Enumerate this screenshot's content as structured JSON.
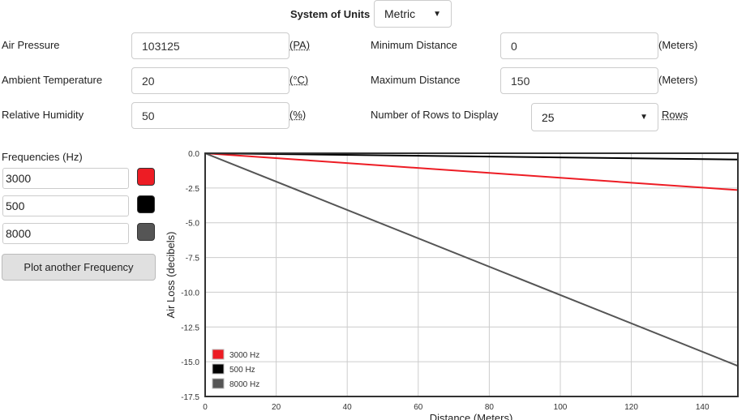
{
  "units": {
    "label": "System of Units",
    "selected": "Metric"
  },
  "fields": {
    "air_pressure": {
      "label": "Air Pressure",
      "value": "103125",
      "unit": "(PA)"
    },
    "temperature": {
      "label": "Ambient Temperature",
      "value": "20",
      "unit": "(°C)"
    },
    "humidity": {
      "label": "Relative Humidity",
      "value": "50",
      "unit": "(%)"
    },
    "min_distance": {
      "label": "Minimum Distance",
      "value": "0",
      "unit": "(Meters)"
    },
    "max_distance": {
      "label": "Maximum Distance",
      "value": "150",
      "unit": "(Meters)"
    },
    "rows": {
      "label": "Number of Rows to Display",
      "selected": "25",
      "unit": "Rows"
    }
  },
  "frequencies": {
    "label": "Frequencies (Hz)",
    "items": [
      {
        "value": "3000",
        "color": "#ed1c24"
      },
      {
        "value": "500",
        "color": "#000000"
      },
      {
        "value": "8000",
        "color": "#555555"
      }
    ],
    "add_button": "Plot another Frequency"
  },
  "chart_data": {
    "type": "line",
    "xlabel": "Distance (Meters)",
    "ylabel": "Air Loss (decibels)",
    "xlim": [
      0,
      150
    ],
    "ylim": [
      -17.5,
      0
    ],
    "xticks": [
      "0",
      "20",
      "40",
      "60",
      "80",
      "100",
      "120",
      "140"
    ],
    "yticks": [
      "0.0",
      "-2.5",
      "-5.0",
      "-7.5",
      "-10.0",
      "-12.5",
      "-15.0",
      "-17.5"
    ],
    "grid": true,
    "legend_position": "bottom-left",
    "series": [
      {
        "name": "3000 Hz",
        "color": "#ed1c24",
        "x": [
          0,
          150
        ],
        "y": [
          0,
          -2.65
        ]
      },
      {
        "name": "500 Hz",
        "color": "#000000",
        "x": [
          0,
          150
        ],
        "y": [
          0,
          -0.45
        ]
      },
      {
        "name": "8000 Hz",
        "color": "#555555",
        "x": [
          0,
          150
        ],
        "y": [
          0,
          -15.3
        ]
      }
    ]
  }
}
